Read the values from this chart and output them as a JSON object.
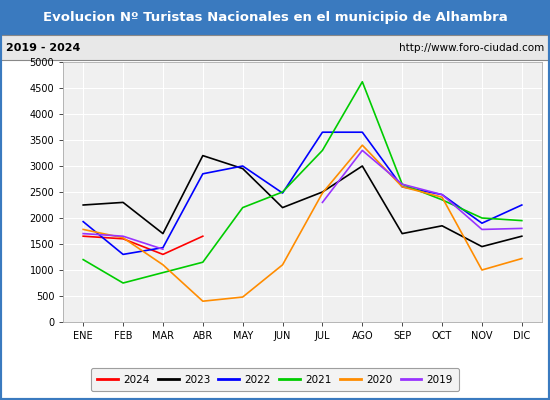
{
  "title": "Evolucion Nº Turistas Nacionales en el municipio de Alhambra",
  "subtitle_left": "2019 - 2024",
  "subtitle_right": "http://www.foro-ciudad.com",
  "months": [
    "ENE",
    "FEB",
    "MAR",
    "ABR",
    "MAY",
    "JUN",
    "JUL",
    "AGO",
    "SEP",
    "OCT",
    "NOV",
    "DIC"
  ],
  "ylim": [
    0,
    5000
  ],
  "yticks": [
    0,
    500,
    1000,
    1500,
    2000,
    2500,
    3000,
    3500,
    4000,
    4500,
    5000
  ],
  "series": {
    "2024": {
      "color": "#ff0000",
      "data": [
        1650,
        1600,
        1300,
        1650,
        null,
        null,
        null,
        null,
        null,
        null,
        null,
        null
      ]
    },
    "2023": {
      "color": "#000000",
      "data": [
        2250,
        2300,
        1700,
        3200,
        2950,
        2200,
        2500,
        3000,
        1700,
        1850,
        1450,
        1650
      ]
    },
    "2022": {
      "color": "#0000ff",
      "data": [
        1930,
        1300,
        1430,
        2850,
        3000,
        2480,
        3650,
        3650,
        2600,
        2450,
        1900,
        2250
      ]
    },
    "2021": {
      "color": "#00cc00",
      "data": [
        1200,
        750,
        950,
        1150,
        2200,
        2500,
        3300,
        4620,
        2650,
        2350,
        2000,
        1950
      ]
    },
    "2020": {
      "color": "#ff8c00",
      "data": [
        1780,
        1620,
        1100,
        400,
        480,
        1100,
        2480,
        3400,
        2600,
        2400,
        1000,
        1220
      ]
    },
    "2019": {
      "color": "#9933ff",
      "data": [
        1700,
        1650,
        1400,
        null,
        null,
        null,
        2300,
        3300,
        2650,
        2450,
        1780,
        1800
      ]
    }
  },
  "title_bg": "#3a7abf",
  "title_color": "#ffffff",
  "subtitle_bg": "#e8e8e8",
  "plot_bg": "#f0f0f0",
  "grid_color": "#ffffff",
  "outer_border_color": "#3a7abf",
  "legend_order": [
    "2024",
    "2023",
    "2022",
    "2021",
    "2020",
    "2019"
  ],
  "title_fontsize": 9.5,
  "subtitle_fontsize": 8,
  "tick_fontsize": 7,
  "legend_fontsize": 7.5
}
